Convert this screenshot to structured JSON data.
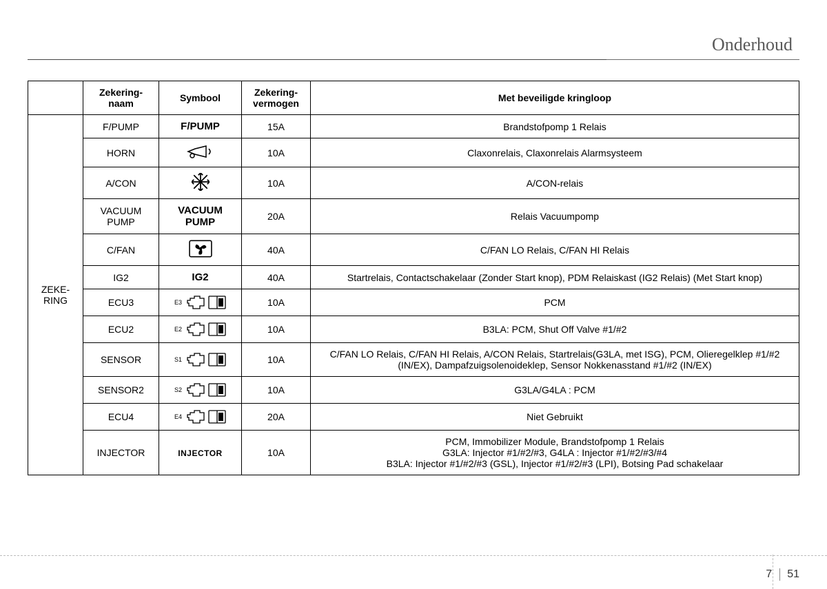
{
  "header": {
    "section_title": "Onderhoud"
  },
  "table": {
    "side_label": "ZEKE-\nRING",
    "columns": {
      "name": "Zekering-\nnaam",
      "symbol": "Symbool",
      "rating": "Zekering-\nvermogen",
      "desc": "Met beveiligde kringloop"
    },
    "rows": [
      {
        "name": "F/PUMP",
        "symbol_kind": "text_bold",
        "symbol_text": "F/PUMP",
        "symbol_sup": "",
        "rating": "15A",
        "desc": "Brandstofpomp 1 Relais"
      },
      {
        "name": "HORN",
        "symbol_kind": "icon_horn",
        "symbol_text": "",
        "symbol_sup": "",
        "rating": "10A",
        "desc": "Claxonrelais, Claxonrelais Alarmsysteem"
      },
      {
        "name": "A/CON",
        "symbol_kind": "icon_snow",
        "symbol_text": "",
        "symbol_sup": "",
        "rating": "10A",
        "desc": "A/CON-relais"
      },
      {
        "name": "VACUUM PUMP",
        "symbol_kind": "text_bold",
        "symbol_text": "VACUUM\nPUMP",
        "symbol_sup": "",
        "rating": "20A",
        "desc": "Relais Vacuumpomp"
      },
      {
        "name": "C/FAN",
        "symbol_kind": "icon_fanbox",
        "symbol_text": "",
        "symbol_sup": "",
        "rating": "40A",
        "desc": "C/FAN LO Relais, C/FAN HI Relais"
      },
      {
        "name": "IG2",
        "symbol_kind": "text_bold",
        "symbol_text": "IG2",
        "symbol_sup": "",
        "rating": "40A",
        "desc": "Startrelais, Contactschakelaar (Zonder Start knop), PDM Relaiskast (IG2 Relais) (Met Start knop)"
      },
      {
        "name": "ECU3",
        "symbol_kind": "icon_ecu",
        "symbol_text": "",
        "symbol_sup": "E3",
        "rating": "10A",
        "desc": "PCM"
      },
      {
        "name": "ECU2",
        "symbol_kind": "icon_ecu",
        "symbol_text": "",
        "symbol_sup": "E2",
        "rating": "10A",
        "desc": "B3LA: PCM, Shut Off Valve #1/#2"
      },
      {
        "name": "SENSOR",
        "symbol_kind": "icon_ecu",
        "symbol_text": "",
        "symbol_sup": "S1",
        "rating": "10A",
        "desc": "C/FAN LO Relais, C/FAN HI Relais, A/CON Relais, Startrelais(G3LA, met ISG), PCM, Olieregelklep #1/#2 (IN/EX), Dampafzuigsolenoideklep, Sensor Nokkenasstand #1/#2 (IN/EX)"
      },
      {
        "name": "SENSOR2",
        "symbol_kind": "icon_ecu",
        "symbol_text": "",
        "symbol_sup": "S2",
        "rating": "10A",
        "desc": "G3LA/G4LA : PCM"
      },
      {
        "name": "ECU4",
        "symbol_kind": "icon_ecu",
        "symbol_text": "",
        "symbol_sup": "E4",
        "rating": "20A",
        "desc": "Niet Gebruikt"
      },
      {
        "name": "INJECTOR",
        "symbol_kind": "text_small",
        "symbol_text": "INJECTOR",
        "symbol_sup": "",
        "rating": "10A",
        "desc": "PCM, Immobilizer Module, Brandstofpomp 1 Relais\nG3LA: Injector #1/#2/#3, G4LA : Injector #1/#2/#3/#4\nB3LA: Injector #1/#2/#3 (GSL), Injector #1/#2/#3 (LPI), Botsing Pad schakelaar"
      }
    ]
  },
  "footer": {
    "chapter": "7",
    "page": "51"
  },
  "style": {
    "text_color": "#000000",
    "title_color": "#5a5a5a",
    "accent_bar_color": "#6b6b6b",
    "font_size_body": 14,
    "font_size_title": 26
  }
}
